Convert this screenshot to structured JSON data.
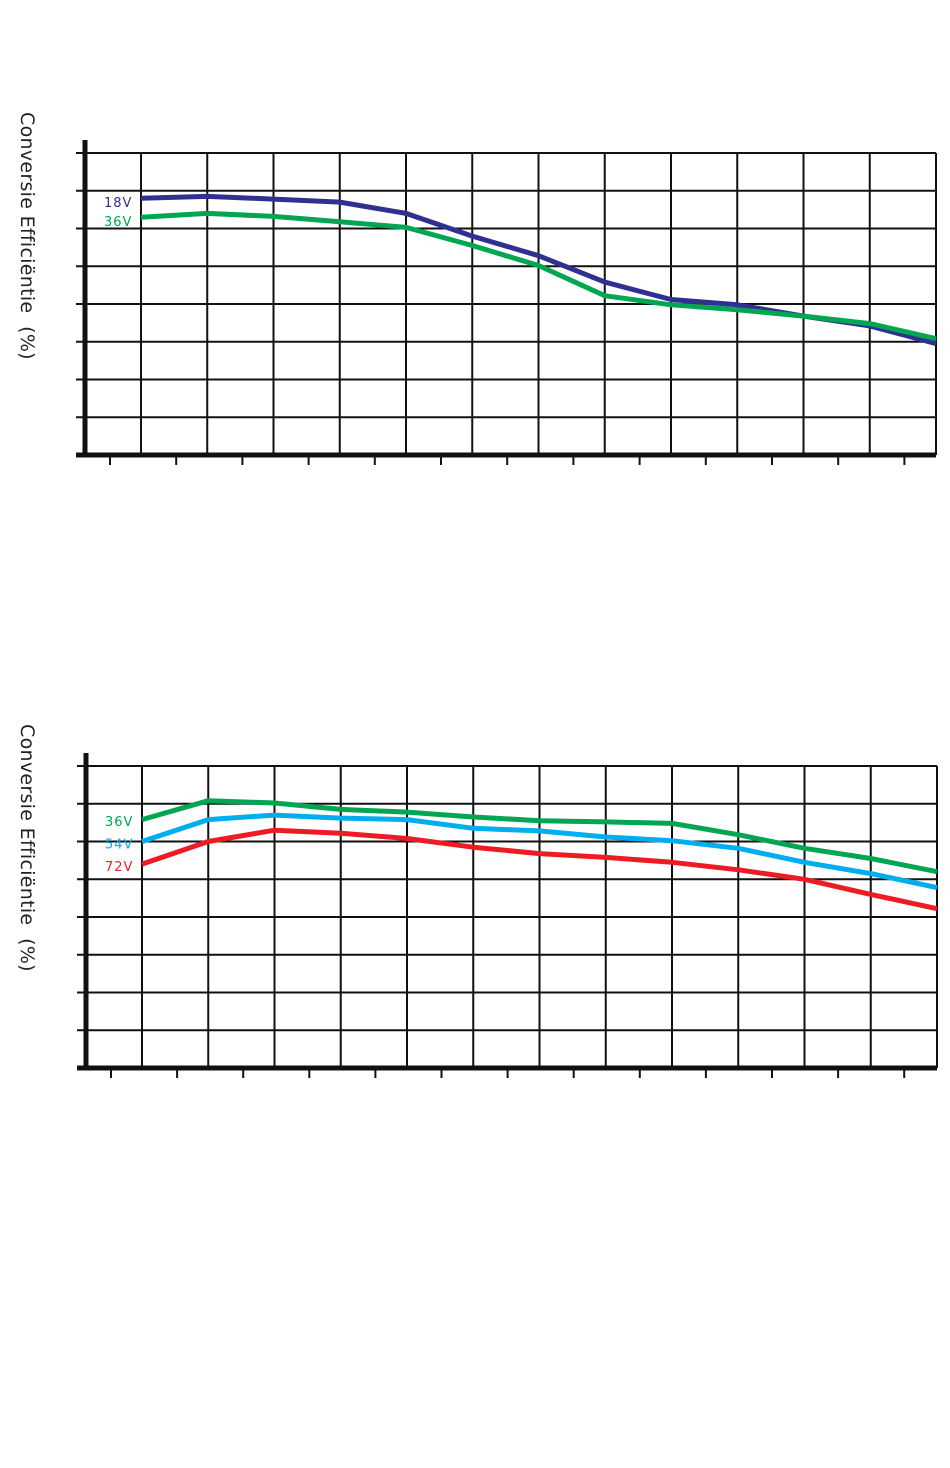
{
  "chart_data": [
    {
      "type": "line",
      "title": "",
      "xlabel": "",
      "ylabel": "Conversie Efficiëntie  (%)",
      "grid": true,
      "legend_position": "inline-left",
      "x": [
        0,
        1,
        2,
        3,
        4,
        5,
        6,
        7,
        8,
        9,
        10,
        11,
        12
      ],
      "xlim": [
        0,
        12
      ],
      "ylim": [
        0,
        8
      ],
      "series": [
        {
          "name": "18V",
          "color": "#2e3192",
          "values": [
            6.8,
            6.85,
            6.78,
            6.7,
            6.4,
            5.8,
            5.28,
            4.58,
            4.12,
            3.98,
            3.68,
            3.42,
            2.95
          ]
        },
        {
          "name": "36V",
          "color": "#00a651",
          "values": [
            6.3,
            6.4,
            6.32,
            6.18,
            6.03,
            5.55,
            5.02,
            4.22,
            3.98,
            3.85,
            3.68,
            3.48,
            3.08
          ]
        }
      ]
    },
    {
      "type": "line",
      "title": "",
      "xlabel": "",
      "ylabel": "Conversie Efficiëntie  (%)",
      "grid": true,
      "legend_position": "inline-left",
      "x": [
        0,
        1,
        2,
        3,
        4,
        5,
        6,
        7,
        8,
        9,
        10,
        11,
        12
      ],
      "xlim": [
        0,
        12
      ],
      "ylim": [
        0,
        8
      ],
      "series": [
        {
          "name": "36V",
          "color": "#00a651",
          "values": [
            6.58,
            7.08,
            7.02,
            6.85,
            6.78,
            6.65,
            6.55,
            6.52,
            6.48,
            6.18,
            5.82,
            5.55,
            5.2
          ]
        },
        {
          "name": "54V",
          "color": "#00aeef",
          "values": [
            6.0,
            6.58,
            6.7,
            6.62,
            6.58,
            6.35,
            6.28,
            6.12,
            6.02,
            5.82,
            5.45,
            5.15,
            4.78
          ]
        },
        {
          "name": "72V",
          "color": "#ed1c24",
          "values": [
            5.4,
            6.0,
            6.3,
            6.22,
            6.08,
            5.85,
            5.68,
            5.58,
            5.45,
            5.25,
            5.0,
            4.6,
            4.22
          ]
        }
      ]
    }
  ]
}
